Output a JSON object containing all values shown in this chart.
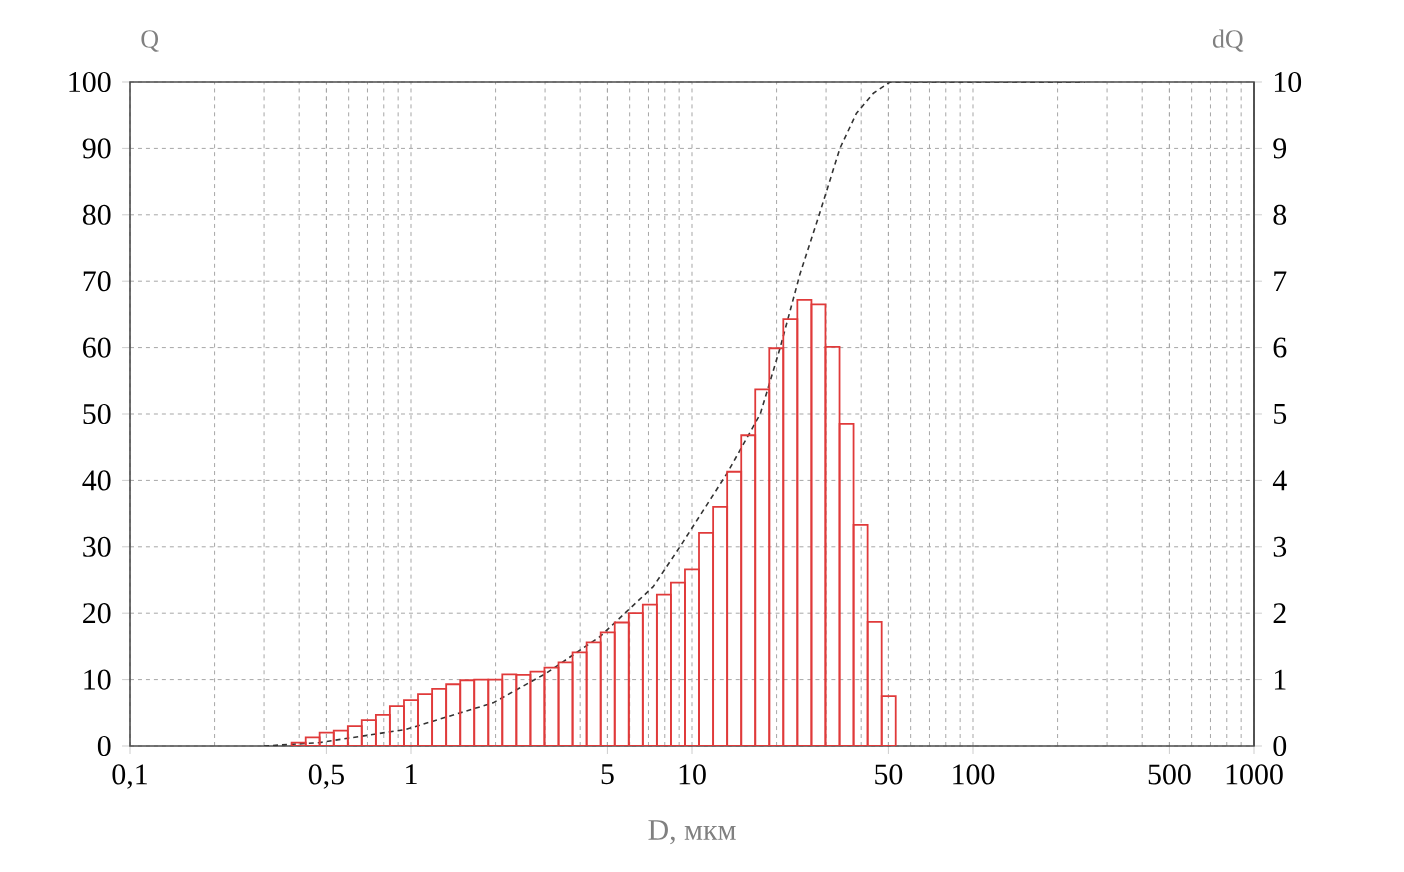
{
  "chart_data": {
    "type": "histogram",
    "xlabel": "D, мкм",
    "ylabel": "Q",
    "y2label": "dQ",
    "log": "x",
    "grid": true,
    "xlim": [
      0.1,
      1000
    ],
    "ylim": [
      0,
      100
    ],
    "y2lim": [
      0,
      10
    ],
    "xticks": [
      {
        "value": 0.1,
        "label": "0,1"
      },
      {
        "value": 0.5,
        "label": "0,5"
      },
      1,
      5,
      10,
      50,
      100,
      500,
      1000
    ],
    "yticks": [
      0,
      10,
      20,
      30,
      40,
      50,
      60,
      70,
      80,
      90,
      100
    ],
    "y2ticks": [
      0,
      1,
      2,
      3,
      4,
      5,
      6,
      7,
      8,
      9,
      10
    ],
    "series": [
      {
        "type": "histogram",
        "axis": "y2",
        "color": "#e03a3a",
        "bins": [
          0.376,
          0.422,
          0.473,
          0.531,
          0.596,
          0.668,
          0.75,
          0.841,
          0.944,
          1.059,
          1.189,
          1.334,
          1.497,
          1.679,
          1.884,
          2.113,
          2.371,
          2.661,
          2.985,
          3.35,
          3.758,
          4.217,
          4.732,
          5.309,
          5.957,
          6.684,
          7.499,
          8.414,
          9.441,
          10.59,
          11.89,
          13.34,
          14.97,
          16.79,
          18.84,
          21.13,
          23.71,
          26.61,
          29.85,
          33.5,
          37.58,
          42.17,
          47.32,
          53.09
        ],
        "values": [
          0.05,
          0.13,
          0.2,
          0.23,
          0.3,
          0.39,
          0.47,
          0.6,
          0.69,
          0.78,
          0.86,
          0.93,
          0.99,
          1.0,
          1.0,
          1.08,
          1.07,
          1.12,
          1.18,
          1.26,
          1.41,
          1.56,
          1.71,
          1.86,
          2.0,
          2.13,
          2.28,
          2.46,
          2.66,
          3.21,
          3.6,
          4.13,
          4.68,
          5.37,
          5.99,
          6.43,
          6.72,
          6.65,
          6.01,
          4.85,
          3.33,
          1.87,
          0.75
        ]
      },
      {
        "type": "line",
        "axis": "y",
        "color": "#333333",
        "line_style": "dashed",
        "marker": "none",
        "x": [
          0.3,
          0.47,
          0.96,
          1.96,
          3.04,
          4.71,
          7.28,
          9.06,
          13.3,
          17.5,
          20.6,
          24.2,
          28.6,
          33.6,
          38.5,
          44.2,
          50.7,
          250
        ],
        "values": [
          0,
          0.5,
          2.5,
          6.5,
          11,
          16.5,
          24,
          30,
          41,
          50,
          60,
          71,
          80.5,
          90,
          95.3,
          98.3,
          100,
          100
        ]
      }
    ]
  }
}
